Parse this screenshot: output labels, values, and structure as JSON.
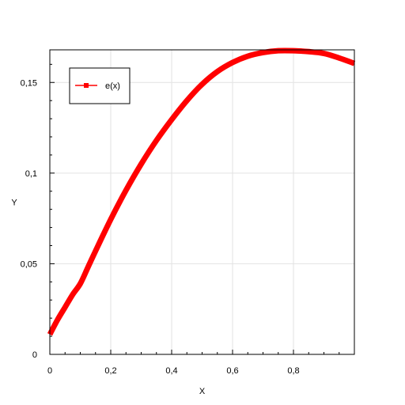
{
  "chart_data": {
    "type": "line",
    "title": "",
    "xlabel": "X",
    "ylabel": "Y",
    "xlim": [
      0,
      1
    ],
    "ylim": [
      0,
      0.168
    ],
    "x_ticks": [
      {
        "value": 0,
        "label": "0"
      },
      {
        "value": 0.2,
        "label": "0,2"
      },
      {
        "value": 0.4,
        "label": "0,4"
      },
      {
        "value": 0.6,
        "label": "0,6"
      },
      {
        "value": 0.8,
        "label": "0,8"
      }
    ],
    "y_ticks": [
      {
        "value": 0,
        "label": "0"
      },
      {
        "value": 0.05,
        "label": "0,05"
      },
      {
        "value": 0.1,
        "label": "0,1"
      },
      {
        "value": 0.15,
        "label": "0,15"
      }
    ],
    "grid": true,
    "legend_position": "top-left",
    "series": [
      {
        "name": "e(x)",
        "color": "#ff0000",
        "marker": "square",
        "x": [
          0,
          0.025,
          0.05,
          0.075,
          0.1,
          0.125,
          0.15,
          0.2,
          0.25,
          0.3,
          0.35,
          0.4,
          0.45,
          0.5,
          0.55,
          0.6,
          0.65,
          0.7,
          0.75,
          0.8,
          0.85,
          0.9,
          0.95,
          1.0
        ],
        "y": [
          0.011,
          0.019,
          0.026,
          0.033,
          0.039,
          0.048,
          0.057,
          0.0745,
          0.0905,
          0.105,
          0.118,
          0.1295,
          0.14,
          0.149,
          0.156,
          0.161,
          0.1645,
          0.1665,
          0.1675,
          0.1675,
          0.167,
          0.166,
          0.1635,
          0.1605
        ]
      }
    ]
  }
}
